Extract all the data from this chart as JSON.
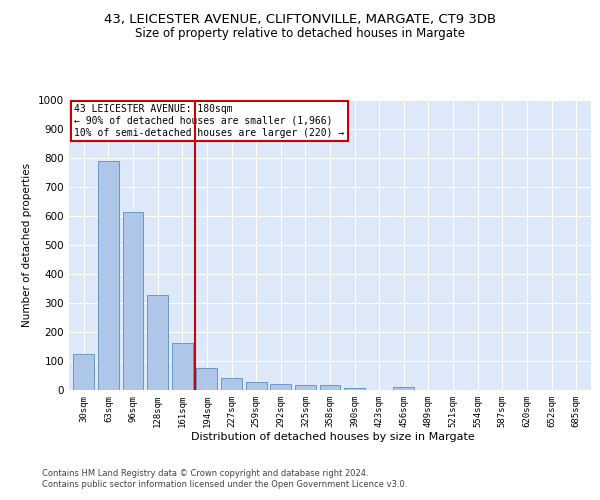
{
  "title1": "43, LEICESTER AVENUE, CLIFTONVILLE, MARGATE, CT9 3DB",
  "title2": "Size of property relative to detached houses in Margate",
  "xlabel": "Distribution of detached houses by size in Margate",
  "ylabel": "Number of detached properties",
  "categories": [
    "30sqm",
    "63sqm",
    "96sqm",
    "128sqm",
    "161sqm",
    "194sqm",
    "227sqm",
    "259sqm",
    "292sqm",
    "325sqm",
    "358sqm",
    "390sqm",
    "423sqm",
    "456sqm",
    "489sqm",
    "521sqm",
    "554sqm",
    "587sqm",
    "620sqm",
    "652sqm",
    "685sqm"
  ],
  "values": [
    125,
    790,
    615,
    328,
    163,
    77,
    40,
    26,
    20,
    16,
    16,
    8,
    0,
    10,
    0,
    0,
    0,
    0,
    0,
    0,
    0
  ],
  "bar_color": "#aec6e8",
  "bar_edge_color": "#5a8fc0",
  "vline_color": "#cc0000",
  "annotation_title": "43 LEICESTER AVENUE: 180sqm",
  "annotation_line1": "← 90% of detached houses are smaller (1,966)",
  "annotation_line2": "10% of semi-detached houses are larger (220) →",
  "annotation_box_color": "#cc0000",
  "footer1": "Contains HM Land Registry data © Crown copyright and database right 2024.",
  "footer2": "Contains public sector information licensed under the Open Government Licence v3.0.",
  "ylim": [
    0,
    1000
  ],
  "yticks": [
    0,
    100,
    200,
    300,
    400,
    500,
    600,
    700,
    800,
    900,
    1000
  ],
  "bg_color": "#dde8f8",
  "grid_color": "#ffffff",
  "title1_fontsize": 9.5,
  "title2_fontsize": 8.5,
  "bar_width": 0.85
}
